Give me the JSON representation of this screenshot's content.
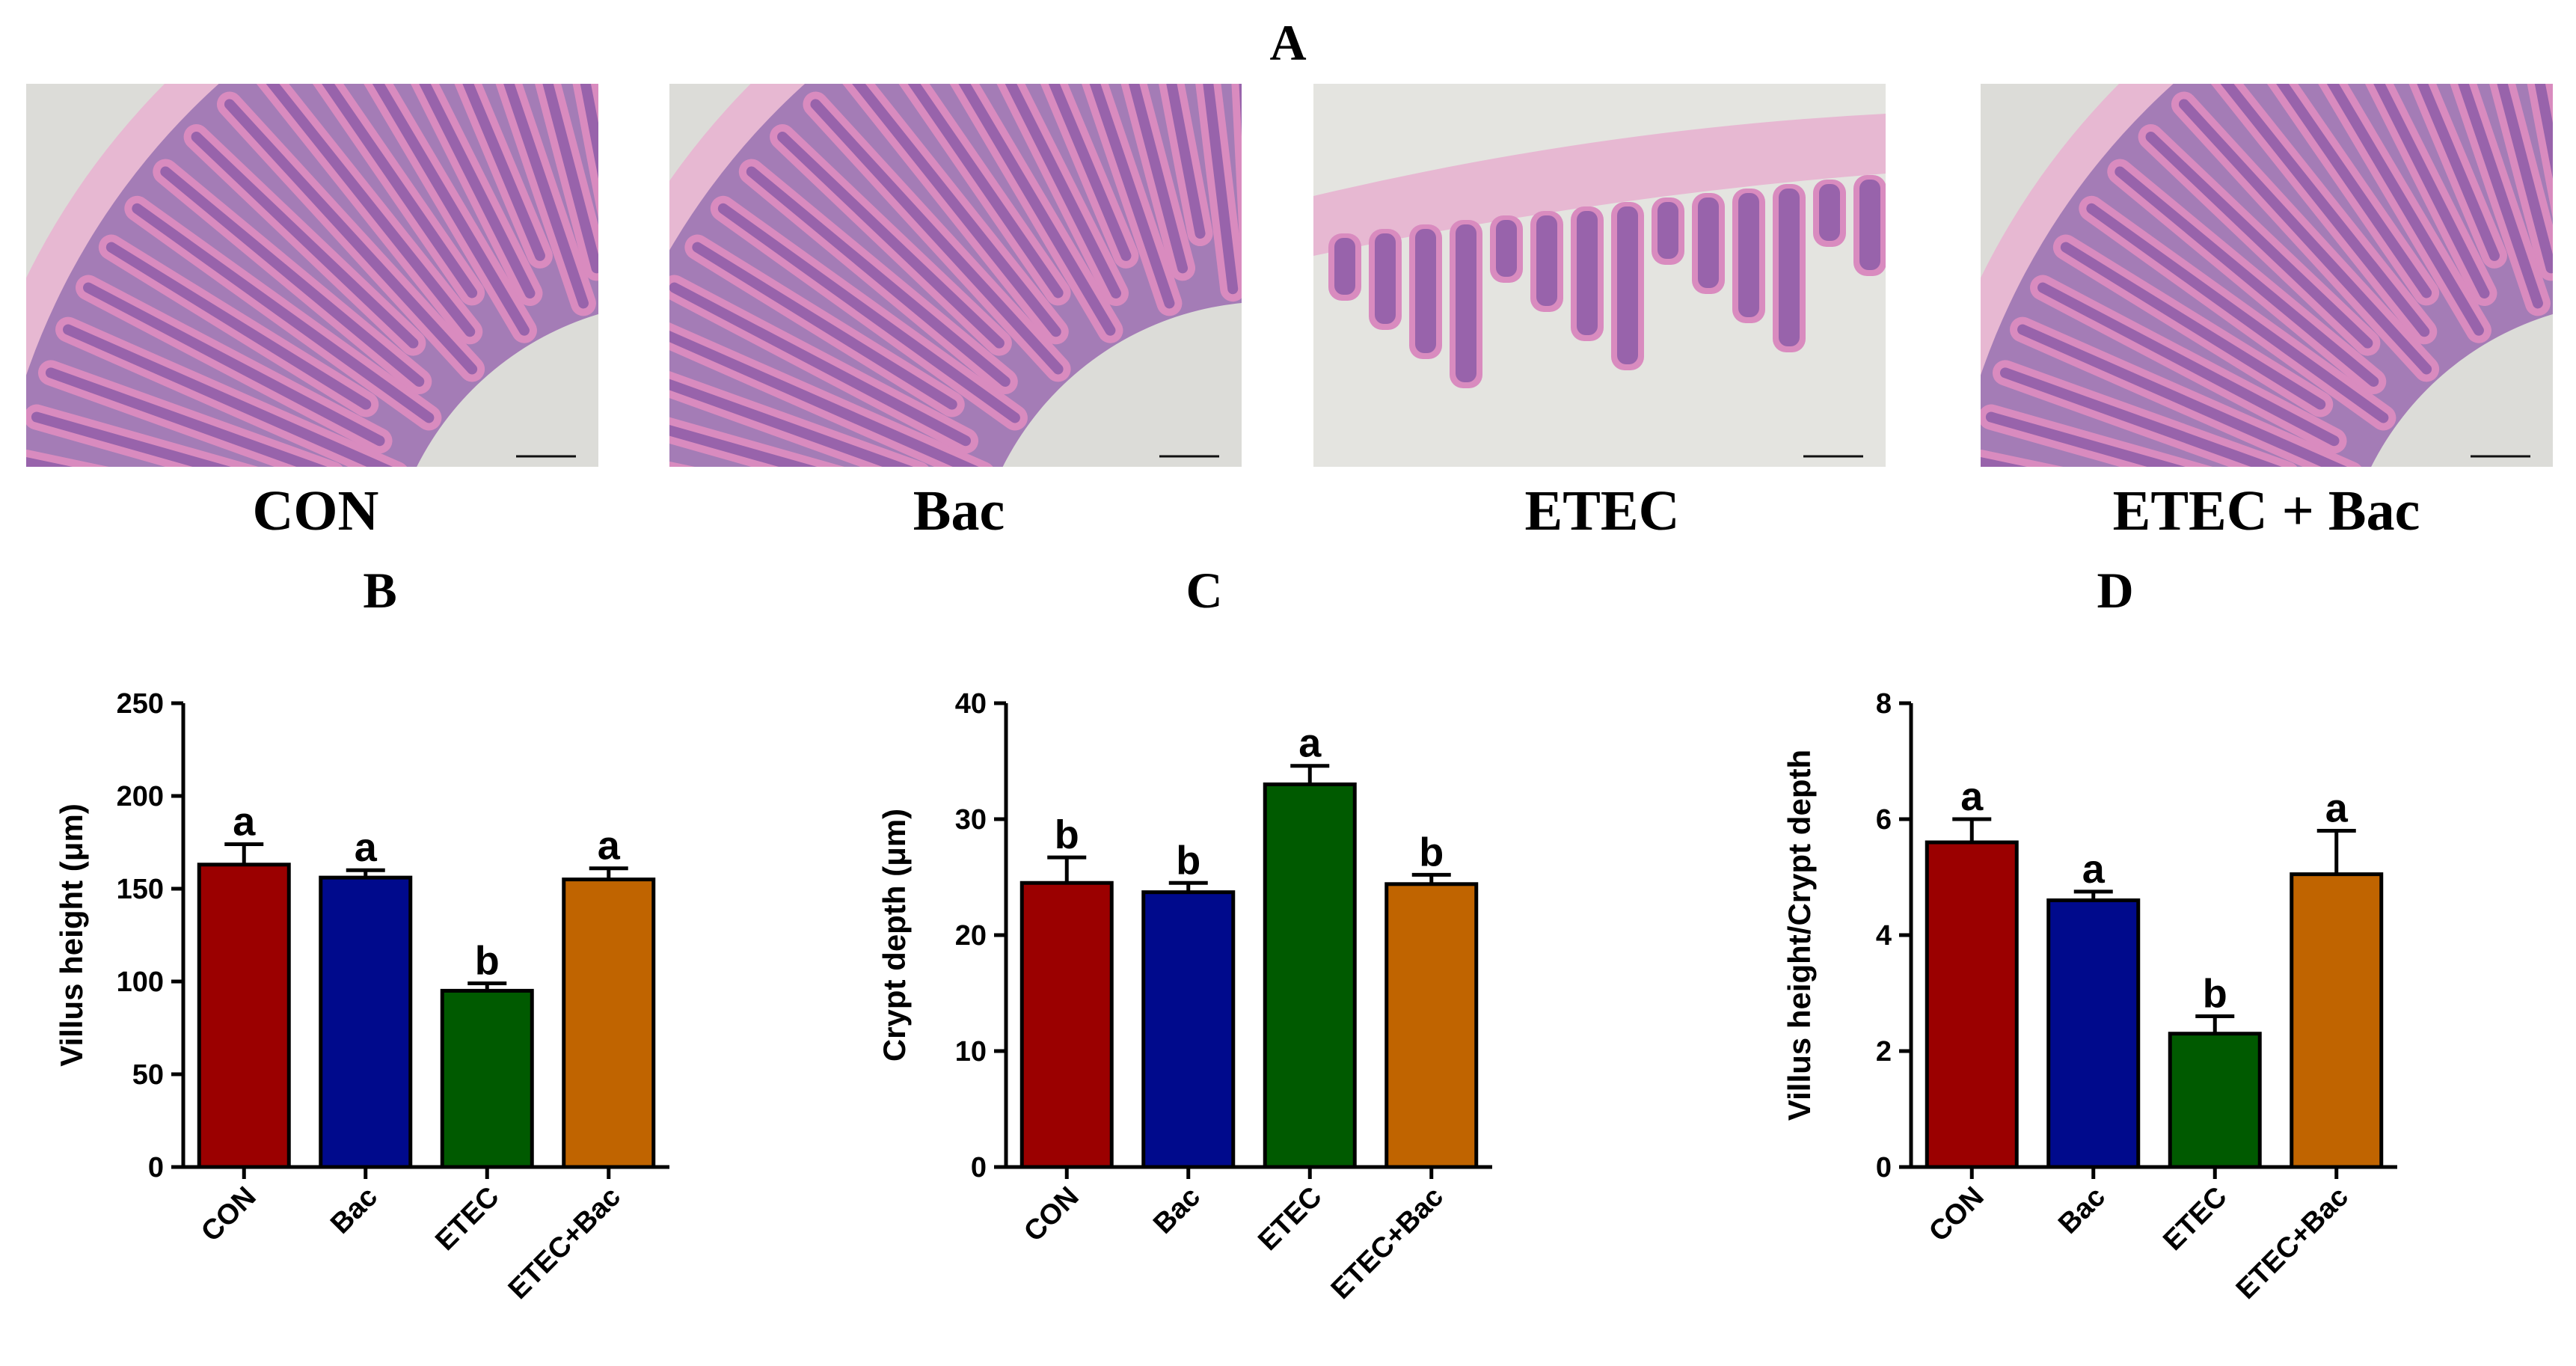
{
  "panels": {
    "A": "A",
    "B": "B",
    "C": "C",
    "D": "D"
  },
  "micrographs": [
    {
      "label": "CON",
      "style": "healthy-villi"
    },
    {
      "label": "Bac",
      "style": "healthy-villi"
    },
    {
      "label": "ETEC",
      "style": "damaged-villi"
    },
    {
      "label": "ETEC + Bac",
      "style": "healthy-villi"
    }
  ],
  "colors": {
    "CON": "#9b0000",
    "Bac": "#000a8c",
    "ETEC": "#005a00",
    "ETEC+Bac": "#c06400",
    "tissue_pink": "#d98bbf",
    "tissue_purple": "#6d4a9e",
    "background": "#dcdcd8"
  },
  "chart_data": [
    {
      "type": "bar",
      "panel": "B",
      "categories": [
        "CON",
        "Bac",
        "ETEC",
        "ETEC+Bac"
      ],
      "values": [
        163,
        156,
        95,
        155
      ],
      "errors": [
        11,
        4,
        4,
        6
      ],
      "significance": [
        "a",
        "a",
        "b",
        "a"
      ],
      "ylabel": "Villus height (μm)",
      "ylim": [
        0,
        250
      ],
      "yticks": [
        0,
        50,
        100,
        150,
        200,
        250
      ]
    },
    {
      "type": "bar",
      "panel": "C",
      "categories": [
        "CON",
        "Bac",
        "ETEC",
        "ETEC+Bac"
      ],
      "values": [
        24.5,
        23.7,
        33,
        24.4
      ],
      "errors": [
        2.2,
        0.8,
        1.6,
        0.8
      ],
      "significance": [
        "b",
        "b",
        "a",
        "b"
      ],
      "ylabel": "Crypt depth (μm)",
      "ylim": [
        0,
        40
      ],
      "yticks": [
        0,
        10,
        20,
        30,
        40
      ]
    },
    {
      "type": "bar",
      "panel": "D",
      "categories": [
        "CON",
        "Bac",
        "ETEC",
        "ETEC+Bac"
      ],
      "values": [
        5.6,
        4.6,
        2.3,
        5.05
      ],
      "errors": [
        0.4,
        0.15,
        0.3,
        0.75
      ],
      "significance": [
        "a",
        "a",
        "b",
        "a"
      ],
      "ylabel": "Villus height/Crypt depth",
      "ylim": [
        0,
        8
      ],
      "yticks": [
        0,
        2,
        4,
        6,
        8
      ]
    }
  ]
}
